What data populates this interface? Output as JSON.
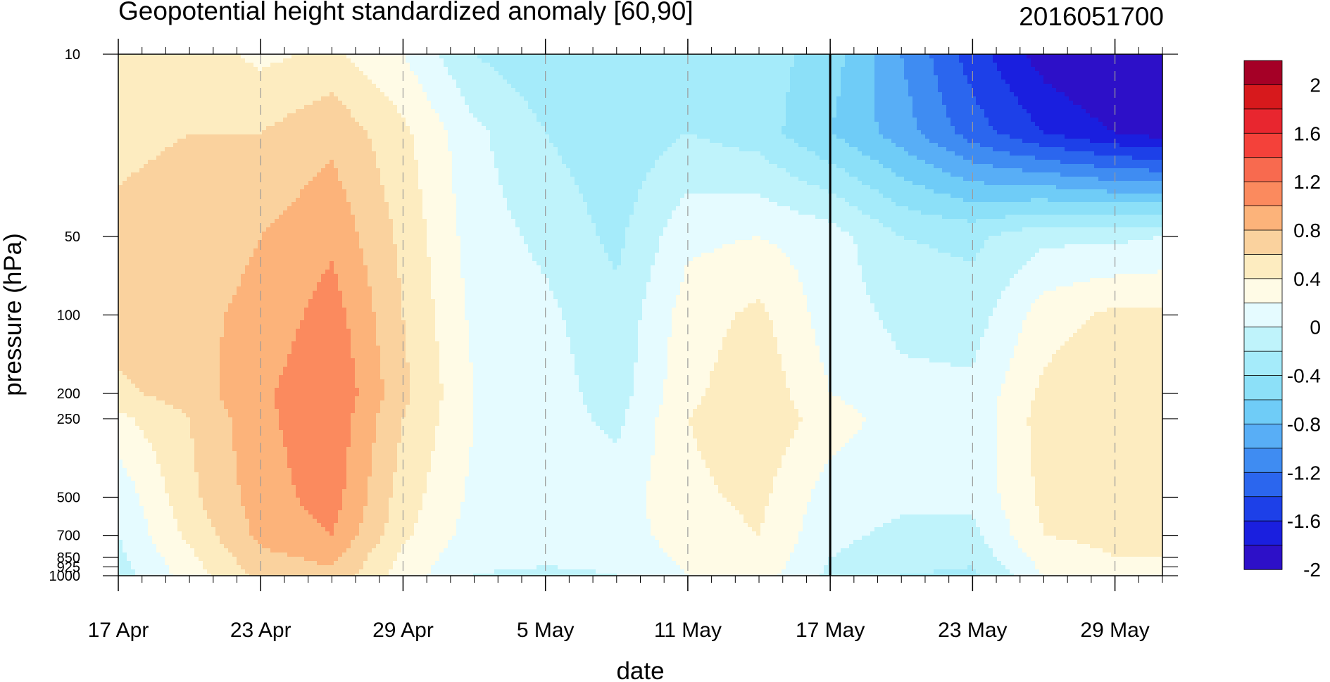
{
  "chart_data": {
    "type": "heatmap",
    "title": "Geopotential height standardized anomaly [60,90]",
    "subtitle": "2016051700",
    "xlabel": "date",
    "ylabel": "pressure (hPa)",
    "x_start": "2016-04-17",
    "x_end": "2016-05-31",
    "x_ticks": [
      {
        "label": "17 Apr",
        "date": "2016-04-17"
      },
      {
        "label": "23 Apr",
        "date": "2016-04-23"
      },
      {
        "label": "29 Apr",
        "date": "2016-04-29"
      },
      {
        "label": "5 May",
        "date": "2016-05-05"
      },
      {
        "label": "11 May",
        "date": "2016-05-11"
      },
      {
        "label": "17 May",
        "date": "2016-05-17"
      },
      {
        "label": "23 May",
        "date": "2016-05-23"
      },
      {
        "label": "29 May",
        "date": "2016-05-29"
      }
    ],
    "y_ticks": [
      {
        "label": "10",
        "value": 10
      },
      {
        "label": "50",
        "value": 50
      },
      {
        "label": "100",
        "value": 100
      },
      {
        "label": "200",
        "value": 200
      },
      {
        "label": "250",
        "value": 250
      },
      {
        "label": "500",
        "value": 500
      },
      {
        "label": "700",
        "value": 700
      },
      {
        "label": "850",
        "value": 850
      },
      {
        "label": "925",
        "value": 925
      },
      {
        "label": "1000",
        "value": 1000
      }
    ],
    "y_scale": "log",
    "y_reversed": true,
    "ylim": [
      1000,
      10
    ],
    "grid": "dashed vertical lines at date ticks",
    "marker_date": "2016-05-17",
    "colorbar": {
      "labels": [
        "2",
        "1.6",
        "1.2",
        "0.8",
        "0.4",
        "0",
        "-0.4",
        "-0.8",
        "-1.2",
        "-1.6",
        "-2"
      ],
      "levels": [
        2.2,
        2.0,
        1.8,
        1.6,
        1.4,
        1.2,
        1.0,
        0.8,
        0.6,
        0.4,
        0.2,
        0,
        -0.2,
        -0.4,
        -0.6,
        -0.8,
        -1.0,
        -1.2,
        -1.4,
        -1.6,
        -1.8,
        -2.0,
        -2.2
      ],
      "colors": [
        "#a50026",
        "#d7191c",
        "#e8262f",
        "#f4413a",
        "#f86a4f",
        "#fb8a5e",
        "#fcb37a",
        "#fad29e",
        "#fdecc0",
        "#fffbe6",
        "#e5fbff",
        "#bff3fb",
        "#a5ebfa",
        "#8ce0f8",
        "#6fccf7",
        "#58aef6",
        "#3f8cf2",
        "#2b66ee",
        "#1d40e8",
        "#1a1fdf",
        "#2d10c8"
      ]
    },
    "anomaly_field": {
      "dates": [
        "2016-04-17",
        "2016-04-20",
        "2016-04-23",
        "2016-04-26",
        "2016-04-29",
        "2016-05-02",
        "2016-05-05",
        "2016-05-08",
        "2016-05-11",
        "2016-05-14",
        "2016-05-17",
        "2016-05-20",
        "2016-05-23",
        "2016-05-26",
        "2016-05-29",
        "2016-05-31"
      ],
      "pressures": [
        10,
        20,
        50,
        100,
        200,
        250,
        500,
        700,
        850,
        1000
      ],
      "values": [
        [
          0.5,
          0.5,
          0.35,
          0.45,
          0.2,
          -0.2,
          -0.35,
          -0.35,
          -0.3,
          -0.3,
          -0.5,
          -1.0,
          -1.5,
          -1.9,
          -2.1,
          -2.2
        ],
        [
          0.55,
          0.6,
          0.6,
          0.75,
          0.45,
          0.05,
          -0.2,
          -0.35,
          -0.2,
          -0.3,
          -0.6,
          -0.9,
          -1.3,
          -1.6,
          -1.8,
          -1.9
        ],
        [
          0.65,
          0.7,
          0.8,
          0.95,
          0.55,
          0.1,
          -0.05,
          -0.25,
          0.15,
          0.2,
          0.1,
          -0.2,
          -0.25,
          -0.05,
          -0.05,
          0.0
        ],
        [
          0.7,
          0.75,
          0.85,
          1.1,
          0.6,
          0.15,
          0.05,
          -0.15,
          0.3,
          0.45,
          0.1,
          -0.05,
          -0.1,
          0.3,
          0.45,
          0.45
        ],
        [
          0.55,
          0.7,
          0.95,
          1.2,
          0.65,
          0.2,
          0.1,
          -0.1,
          0.35,
          0.55,
          0.2,
          0.05,
          0.05,
          0.45,
          0.6,
          0.55
        ],
        [
          0.35,
          0.6,
          0.95,
          1.15,
          0.6,
          0.2,
          0.1,
          -0.05,
          0.4,
          0.55,
          0.3,
          0.1,
          0.05,
          0.5,
          0.6,
          0.55
        ],
        [
          0.05,
          0.55,
          0.9,
          1.1,
          0.5,
          0.15,
          0.15,
          0.1,
          0.35,
          0.45,
          0.1,
          0.05,
          0.05,
          0.45,
          0.5,
          0.5
        ],
        [
          0.0,
          0.45,
          0.85,
          1.0,
          0.45,
          0.1,
          0.05,
          0.1,
          0.3,
          0.4,
          0.05,
          -0.05,
          -0.05,
          0.4,
          0.45,
          0.45
        ],
        [
          -0.05,
          0.35,
          0.75,
          0.85,
          0.35,
          0.05,
          0.05,
          0.05,
          0.25,
          0.35,
          0.0,
          -0.1,
          -0.15,
          0.3,
          0.4,
          0.4
        ],
        [
          -0.1,
          0.3,
          0.65,
          0.75,
          0.3,
          0.0,
          -0.05,
          0.0,
          0.2,
          0.3,
          -0.05,
          -0.2,
          -0.25,
          0.2,
          0.35,
          0.35
        ]
      ]
    }
  }
}
